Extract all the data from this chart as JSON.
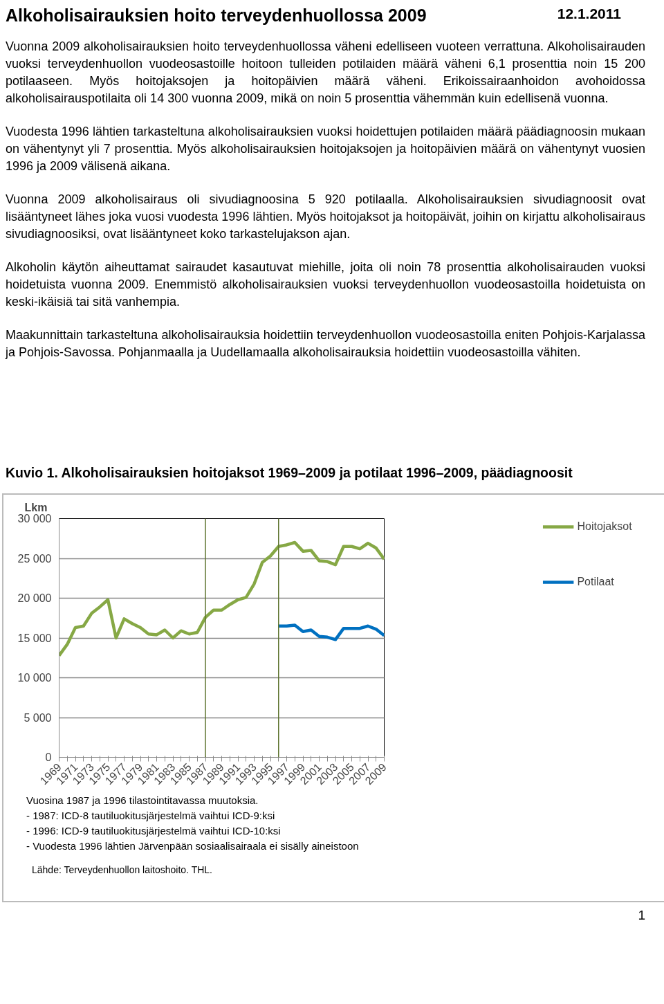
{
  "chart_data": {
    "type": "line",
    "title": "Alkoholisairauksien hoito terveydenhuollossa 2009",
    "subtitle": "Kuvio 1. Alkoholisairauksien hoitojaksot 1969–2009 ja potilaat 1996–2009, päädiagnoosit",
    "ylabel": "Lkm",
    "annotations": [
      "12.1.2011",
      "Vuonna 2009 alkoholisairauksien hoito terveydenhuollossa väheni edelliseen vuoteen verrattuna. Alkoholisairauden vuoksi terveydenhuollon vuodeosastoille hoitoon tulleiden potilaiden määrä väheni 6,1 prosenttia noin 15 200 potilaaseen. Myös hoitojaksojen ja hoitopäivien määrä väheni. Erikoissairaanhoidon avohoidossa alkoholisairauspotilaita oli 14 300 vuonna 2009, mikä on noin 5 prosenttia vähemmän kuin edellisenä vuonna.",
      "Vuodesta 1996 lähtien tarkasteltuna alkoholisairauksien vuoksi hoidettujen potilaiden määrä päädiagnoosin mukaan on vähentynyt yli 7 prosenttia. Myös alkoholisairauksien hoitojaksojen ja hoitopäivien määrä on vähentynyt vuosien 1996 ja 2009 välisenä aikana.",
      "Vuonna 2009 alkoholisairaus oli sivudiagnoosina 5 920 potilaalla. Alkoholisairauksien sivudiagnoosit ovat lisääntyneet lähes joka vuosi vuodesta 1996 lähtien. Myös hoitojaksot ja hoitopäivät, joihin on kirjattu alkoholisairaus sivudiagnoosiksi, ovat lisääntyneet koko tarkastelujakson ajan.",
      "Alkoholin käytön aiheuttamat sairaudet kasautuvat miehille, joita oli noin 78 prosenttia alkoholisairauden vuoksi hoidetuista vuonna 2009. Enemmistö alkoholisairauksien vuoksi terveydenhuollon vuodeosastoilla hoidetuista on keski-ikäisiä tai sitä vanhempia.",
      "Maakunnittain tarkasteltuna alkoholisairauksia hoidettiin terveydenhuollon vuodeosastoilla eniten Pohjois-Karjalassa ja Pohjois-Savossa. Pohjanmaalla ja Uudellamaalla alkoholisairauksia hoidettiin vuodeosastoilla vähiten.",
      "Vuosina 1987 ja 1996 tilastointitavassa muutoksia.",
      "-  1987: ICD-8 tautiluokitusjärjestelmä vaihtui ICD-9:ksi",
      "-  1996: ICD-9 tautiluokitusjärjestelmä vaihtui ICD-10:ksi",
      "-  Vuodesta 1996 lähtien Järvenpään sosiaalisairaala ei sisälly aineistoon",
      "Lähde: Terveydenhuollon laitoshoito. THL.",
      "1"
    ],
    "x": [
      1969,
      1970,
      1971,
      1972,
      1973,
      1974,
      1975,
      1976,
      1977,
      1978,
      1979,
      1980,
      1981,
      1982,
      1983,
      1984,
      1985,
      1986,
      1987,
      1988,
      1989,
      1990,
      1991,
      1992,
      1993,
      1994,
      1995,
      1996,
      1997,
      1998,
      1999,
      2000,
      2001,
      2002,
      2003,
      2004,
      2005,
      2006,
      2007,
      2008,
      2009
    ],
    "series": [
      {
        "name": "Hoitojaksot",
        "color": "#86a845",
        "values": [
          12800,
          14200,
          16300,
          16500,
          18100,
          18900,
          19800,
          15000,
          17400,
          16800,
          16300,
          15500,
          15400,
          16000,
          15000,
          15900,
          15500,
          15700,
          17600,
          18500,
          18500,
          19200,
          19800,
          20100,
          21800,
          24500,
          25300,
          26500,
          26700,
          27000,
          25900,
          26000,
          24700,
          24600,
          24200,
          26500,
          26500,
          26200,
          26900,
          26300,
          24900
        ]
      },
      {
        "name": "Potilaat",
        "color": "#0070c0",
        "x": [
          1996,
          1997,
          1998,
          1999,
          2000,
          2001,
          2002,
          2003,
          2004,
          2005,
          2006,
          2007,
          2008,
          2009
        ],
        "values": [
          16500,
          16500,
          16600,
          15800,
          16000,
          15200,
          15100,
          14800,
          16200,
          16200,
          16200,
          16500,
          16100,
          15300
        ]
      }
    ],
    "xlim": [
      1969,
      2009
    ],
    "xticks": [
      1969,
      {
        "value": 1970,
        "label": null
      },
      1971,
      {
        "value": 1972,
        "label": null
      },
      1973,
      {
        "value": 1974,
        "label": null
      },
      1975,
      {
        "value": 1976,
        "label": null
      },
      1977,
      {
        "value": 1978,
        "label": null
      },
      1979,
      {
        "value": 1980,
        "label": null
      },
      1981,
      {
        "value": 1982,
        "label": null
      },
      1983,
      {
        "value": 1984,
        "label": null
      },
      1985,
      {
        "value": 1986,
        "label": null
      },
      1987,
      {
        "value": 1988,
        "label": null
      },
      1989,
      {
        "value": 1990,
        "label": null
      },
      1991,
      {
        "value": 1992,
        "label": null
      },
      1993,
      {
        "value": 1994,
        "label": null
      },
      1995,
      {
        "value": 1996,
        "label": null
      },
      1997,
      {
        "value": 1998,
        "label": null
      },
      1999,
      {
        "value": 2000,
        "label": null
      },
      2001,
      {
        "value": 2002,
        "label": null
      },
      2003,
      {
        "value": 2004,
        "label": null
      },
      2005,
      {
        "value": 2006,
        "label": null
      },
      2007,
      {
        "value": 2008,
        "label": null
      },
      2009
    ],
    "ylim": [
      0,
      30000
    ],
    "yticks": [
      0,
      {
        "value": 5000,
        "label": "5 000"
      },
      {
        "value": 10000,
        "label": "10 000"
      },
      {
        "value": 15000,
        "label": "15 000"
      },
      {
        "value": 20000,
        "label": "20 000"
      },
      {
        "value": 25000,
        "label": "25 000"
      },
      {
        "value": 30000,
        "label": "30 000"
      }
    ],
    "ref_lines": [
      {
        "axis": "x",
        "value": 1987,
        "color": "#5f7530"
      },
      {
        "axis": "x",
        "value": 1996,
        "color": "#5f7530"
      }
    ],
    "grid": "y",
    "legend": "right",
    "line_style": "solid"
  }
}
